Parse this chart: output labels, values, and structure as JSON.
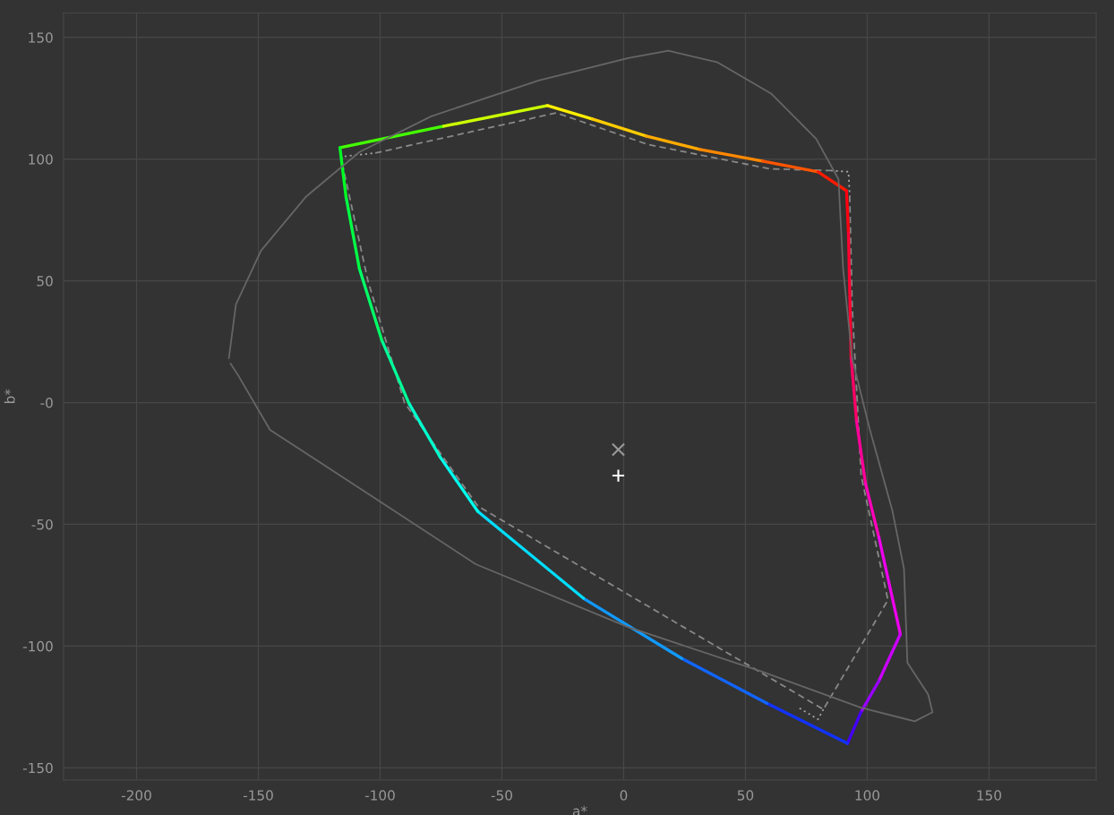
{
  "chart_data": {
    "type": "line",
    "xlabel": "a*",
    "ylabel": "b*",
    "xlim": [
      -230,
      194
    ],
    "ylim": [
      -155,
      160
    ],
    "xticks": [
      -200,
      -150,
      -100,
      -50,
      0,
      50,
      100,
      150
    ],
    "yticks": [
      -150,
      -100,
      -50,
      {
        "value": 0,
        "label": "-0"
      },
      50,
      100,
      150
    ],
    "grid": true,
    "legend": false,
    "series": [
      {
        "color": "#666666",
        "line_style": "solid",
        "x": [
          -162.1,
          -159.2,
          -148.9,
          -130.5,
          -108.5,
          -79,
          -34.9,
          1.8,
          18.4,
          38.6,
          60.7,
          79,
          88.2,
          90.1,
          93.8,
          101.1,
          110.3,
          115.1,
          116.5,
          125,
          126.8,
          119.5,
          97.4,
          57,
          1.8,
          -60.7,
          -108.5,
          -145.2,
          -158.1,
          -161.4
        ],
        "values": [
          18.2,
          40.3,
          62.4,
          84.5,
          102.9,
          117.6,
          132.3,
          141.5,
          144.5,
          139.7,
          126.8,
          108.4,
          91.8,
          55.0,
          18.2,
          -11.2,
          -44.3,
          -68.3,
          -106.9,
          -119.8,
          -127.2,
          -130.9,
          -125.3,
          -110.6,
          -92.2,
          -66.4,
          -35.1,
          -11.2,
          10.9,
          16.0
        ]
      },
      {
        "color": "#888888",
        "line_style": "dashed",
        "x": [
          -102,
          -27.6,
          10,
          60,
          85
        ],
        "values": [
          102.5,
          119,
          106,
          96,
          95.3
        ]
      },
      {
        "color": "#888888",
        "line_style": "dashed",
        "x": [
          92.8,
          93.8,
          97.5,
          108.5,
          82,
          -59.9,
          -90,
          -105,
          -115.5
        ],
        "values": [
          85,
          40,
          -30,
          -81.1,
          -126,
          -42.5,
          0,
          50,
          98
        ]
      },
      {
        "color": "#a0a0a0",
        "line_style": "dotted",
        "x": [
          -115.5,
          -115.8,
          -102
        ],
        "values": [
          98,
          101,
          102.5
        ]
      },
      {
        "color": "#a0a0a0",
        "line_style": "dotted",
        "x": [
          85,
          92.3,
          92.8
        ],
        "values": [
          95.3,
          94.8,
          85
        ]
      },
      {
        "color": "#a0a0a0",
        "line_style": "dotted",
        "x": [
          82,
          79.8,
          72
        ],
        "values": [
          -126,
          -130.1,
          -125.4
        ]
      },
      {
        "color": "#44ff00",
        "x": [
          -116.5,
          -73.9
        ],
        "values": [
          104.7,
          113.5
        ]
      },
      {
        "color": "#ccff00",
        "x": [
          -73.9,
          -31.3
        ],
        "values": [
          113.5,
          122.0
        ]
      },
      {
        "color": "#ffee00",
        "x": [
          -31.3,
          -12.9
        ],
        "values": [
          122.0,
          116.5
        ]
      },
      {
        "color": "#ffcc00",
        "x": [
          -12.9,
          9.2
        ],
        "values": [
          116.5,
          109.5
        ]
      },
      {
        "color": "#ffaa00",
        "x": [
          9.2,
          31.3
        ],
        "values": [
          109.5,
          104
        ]
      },
      {
        "color": "#ff8800",
        "x": [
          31.3,
          57
        ],
        "values": [
          104,
          99.2
        ]
      },
      {
        "color": "#ff5500",
        "x": [
          57,
          79.8
        ],
        "values": [
          99.2,
          94.8
        ]
      },
      {
        "color": "#ff1a00",
        "x": [
          79.8,
          91.5
        ],
        "values": [
          94.8,
          87.0
        ]
      },
      {
        "color": "#ff0010",
        "x": [
          91.5,
          92.3
        ],
        "values": [
          87.0,
          69.7
        ]
      },
      {
        "color": "#ff0030",
        "x": [
          92.3,
          93.4
        ],
        "values": [
          69.7,
          18.2
        ]
      },
      {
        "color": "#ff0066",
        "x": [
          93.4,
          95.6
        ],
        "values": [
          18.2,
          -7.5
        ]
      },
      {
        "color": "#ff0099",
        "x": [
          95.6,
          99.3
        ],
        "values": [
          -7.5,
          -33.3
        ]
      },
      {
        "color": "#ff00bb",
        "x": [
          99.3,
          104.8
        ],
        "values": [
          -33.3,
          -55.4
        ]
      },
      {
        "color": "#ee00ee",
        "x": [
          104.8,
          113.6
        ],
        "values": [
          -55.4,
          -95.1
        ]
      },
      {
        "color": "#cc00ff",
        "x": [
          113.6,
          104.8
        ],
        "values": [
          -95.1,
          -114.3
        ]
      },
      {
        "color": "#9900ff",
        "x": [
          104.8,
          97.4
        ],
        "values": [
          -114.3,
          -127.2
        ]
      },
      {
        "color": "#4400ff",
        "x": [
          97.4,
          91.9
        ],
        "values": [
          -127.2,
          -140
        ]
      },
      {
        "color": "#1133ff",
        "x": [
          91.9,
          58.8
        ],
        "values": [
          -140,
          -123.5
        ]
      },
      {
        "color": "#1166ff",
        "x": [
          58.8,
          23.9
        ],
        "values": [
          -123.5,
          -105.1
        ]
      },
      {
        "color": "#1199ff",
        "x": [
          23.9,
          -16.5
        ],
        "values": [
          -105.1,
          -80.4
        ]
      },
      {
        "color": "#00ddff",
        "x": [
          -16.5,
          -59.9
        ],
        "values": [
          -80.4,
          -44.7
        ]
      },
      {
        "color": "#00ffee",
        "x": [
          -59.9,
          -75.4
        ],
        "values": [
          -44.7,
          -22.3
        ]
      },
      {
        "color": "#00ffcc",
        "x": [
          -75.4,
          -88.2
        ],
        "values": [
          -22.3,
          -0.2
        ]
      },
      {
        "color": "#00ff99",
        "x": [
          -88.2,
          -99.3
        ],
        "values": [
          -0.2,
          25.6
        ]
      },
      {
        "color": "#00ff66",
        "x": [
          -99.3,
          -108.5
        ],
        "values": [
          25.6,
          55
        ]
      },
      {
        "color": "#00ff44",
        "x": [
          -108.5,
          -114
        ],
        "values": [
          55,
          84.5
        ]
      },
      {
        "color": "#00ff22",
        "x": [
          -114,
          -116.5
        ],
        "values": [
          84.5,
          104.7
        ]
      },
      {
        "type": "scatter",
        "marker": "x",
        "color": "#999999",
        "x": [
          -2.2
        ],
        "values": [
          -19.3
        ]
      },
      {
        "type": "scatter",
        "marker": "cross",
        "color": "#ffffff",
        "x": [
          -2.2
        ],
        "values": [
          -30.0
        ]
      }
    ]
  }
}
